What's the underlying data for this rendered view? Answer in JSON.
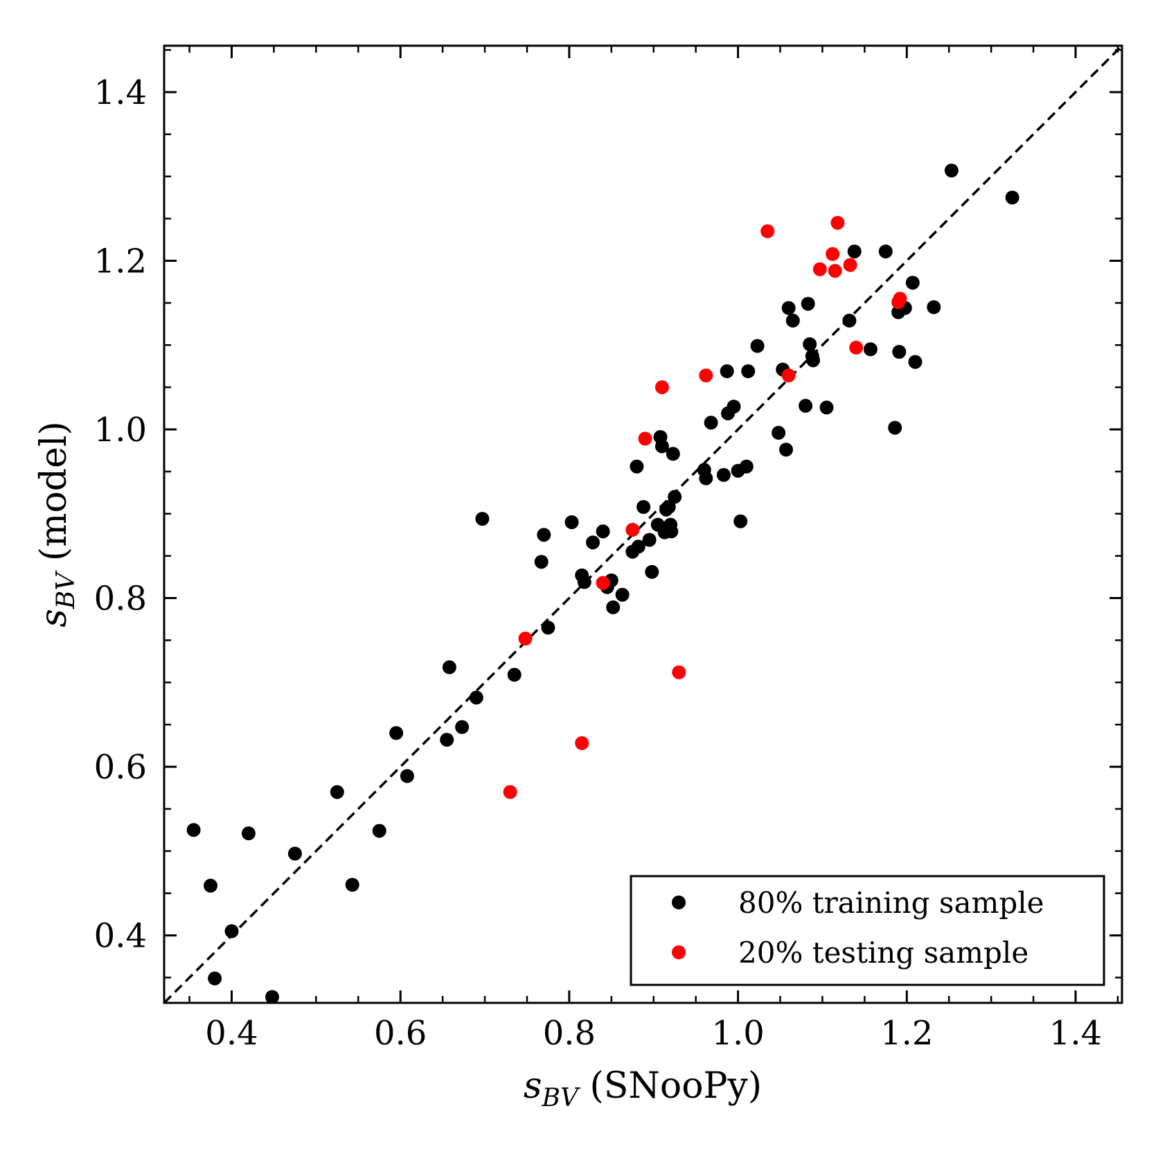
{
  "chart_data": {
    "type": "scatter",
    "xlabel": {
      "var": "s",
      "sub": "BV",
      "rest": " (SNooPy)"
    },
    "ylabel": {
      "var": "s",
      "sub": "BV",
      "rest": " (model)"
    },
    "xlim": [
      0.32,
      1.455
    ],
    "ylim": [
      0.32,
      1.455
    ],
    "xticks": [
      0.4,
      0.6,
      0.8,
      1.0,
      1.2,
      1.4
    ],
    "yticks": [
      0.4,
      0.6,
      0.8,
      1.0,
      1.2,
      1.4
    ],
    "xtick_labels": [
      "0.4",
      "0.6",
      "0.8",
      "1.0",
      "1.2",
      "1.4"
    ],
    "ytick_labels": [
      "0.4",
      "0.6",
      "0.8",
      "1.0",
      "1.2",
      "1.4"
    ],
    "minor_tick_step": 0.05,
    "reference_line": {
      "style": "dashed",
      "color": "#000000",
      "x": [
        0.32,
        1.455
      ],
      "y": [
        0.32,
        1.455
      ]
    },
    "legend_position": "lower-right",
    "series": [
      {
        "name": "80% training sample",
        "color": "#000000",
        "points": [
          [
            0.355,
            0.525
          ],
          [
            0.375,
            0.459
          ],
          [
            0.38,
            0.349
          ],
          [
            0.4,
            0.405
          ],
          [
            0.42,
            0.521
          ],
          [
            0.448,
            0.327
          ],
          [
            0.475,
            0.497
          ],
          [
            0.525,
            0.57
          ],
          [
            0.543,
            0.46
          ],
          [
            0.575,
            0.524
          ],
          [
            0.595,
            0.64
          ],
          [
            0.608,
            0.589
          ],
          [
            0.655,
            0.632
          ],
          [
            0.658,
            0.718
          ],
          [
            0.673,
            0.647
          ],
          [
            0.69,
            0.682
          ],
          [
            0.697,
            0.894
          ],
          [
            0.735,
            0.709
          ],
          [
            0.767,
            0.843
          ],
          [
            0.77,
            0.875
          ],
          [
            0.775,
            0.765
          ],
          [
            0.803,
            0.89
          ],
          [
            0.815,
            0.827
          ],
          [
            0.818,
            0.819
          ],
          [
            0.828,
            0.866
          ],
          [
            0.84,
            0.879
          ],
          [
            0.845,
            0.813
          ],
          [
            0.85,
            0.821
          ],
          [
            0.852,
            0.789
          ],
          [
            0.863,
            0.804
          ],
          [
            0.875,
            0.855
          ],
          [
            0.88,
            0.956
          ],
          [
            0.882,
            0.861
          ],
          [
            0.888,
            0.908
          ],
          [
            0.895,
            0.869
          ],
          [
            0.898,
            0.831
          ],
          [
            0.905,
            0.887
          ],
          [
            0.908,
            0.991
          ],
          [
            0.91,
            0.98
          ],
          [
            0.913,
            0.878
          ],
          [
            0.915,
            0.905
          ],
          [
            0.918,
            0.908
          ],
          [
            0.92,
            0.887
          ],
          [
            0.921,
            0.879
          ],
          [
            0.923,
            0.971
          ],
          [
            0.925,
            0.92
          ],
          [
            0.96,
            0.952
          ],
          [
            0.962,
            0.942
          ],
          [
            0.968,
            1.008
          ],
          [
            0.983,
            0.946
          ],
          [
            0.987,
            1.069
          ],
          [
            0.988,
            1.019
          ],
          [
            0.995,
            1.027
          ],
          [
            1.0,
            0.951
          ],
          [
            1.003,
            0.891
          ],
          [
            1.01,
            0.956
          ],
          [
            1.012,
            1.069
          ],
          [
            1.023,
            1.099
          ],
          [
            1.048,
            0.996
          ],
          [
            1.053,
            1.071
          ],
          [
            1.057,
            0.976
          ],
          [
            1.06,
            1.144
          ],
          [
            1.065,
            1.129
          ],
          [
            1.08,
            1.028
          ],
          [
            1.083,
            1.149
          ],
          [
            1.085,
            1.101
          ],
          [
            1.088,
            1.087
          ],
          [
            1.089,
            1.082
          ],
          [
            1.105,
            1.026
          ],
          [
            1.132,
            1.129
          ],
          [
            1.138,
            1.211
          ],
          [
            1.157,
            1.095
          ],
          [
            1.175,
            1.211
          ],
          [
            1.186,
            1.002
          ],
          [
            1.19,
            1.139
          ],
          [
            1.191,
            1.092
          ],
          [
            1.198,
            1.144
          ],
          [
            1.207,
            1.174
          ],
          [
            1.21,
            1.08
          ],
          [
            1.232,
            1.145
          ],
          [
            1.253,
            1.307
          ],
          [
            1.325,
            1.275
          ]
        ]
      },
      {
        "name": "20% testing sample",
        "color": "#ff0000",
        "points": [
          [
            0.73,
            0.57
          ],
          [
            0.748,
            0.752
          ],
          [
            0.815,
            0.628
          ],
          [
            0.84,
            0.818
          ],
          [
            0.875,
            0.881
          ],
          [
            0.89,
            0.989
          ],
          [
            0.91,
            1.05
          ],
          [
            0.93,
            0.712
          ],
          [
            0.962,
            1.064
          ],
          [
            1.035,
            1.235
          ],
          [
            1.06,
            1.064
          ],
          [
            1.097,
            1.19
          ],
          [
            1.112,
            1.208
          ],
          [
            1.115,
            1.188
          ],
          [
            1.118,
            1.245
          ],
          [
            1.133,
            1.195
          ],
          [
            1.14,
            1.097
          ],
          [
            1.19,
            1.151
          ],
          [
            1.192,
            1.155
          ]
        ]
      }
    ]
  }
}
